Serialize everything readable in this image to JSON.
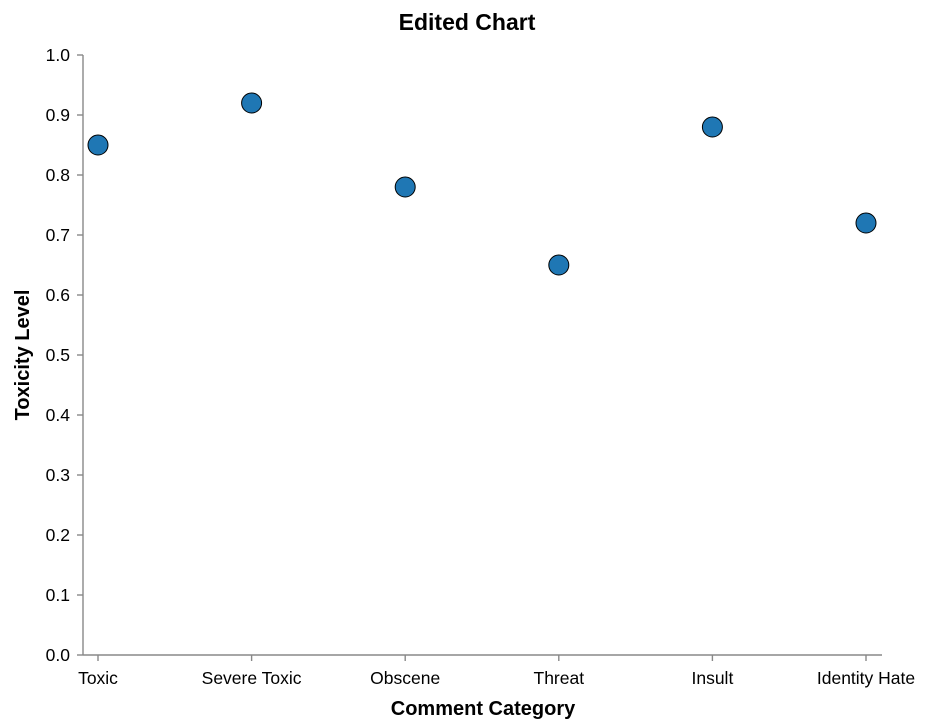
{
  "chart_data": {
    "type": "scatter",
    "title": "Edited Chart",
    "xlabel": "Comment Category",
    "ylabel": "Toxicity Level",
    "categories": [
      "Toxic",
      "Severe Toxic",
      "Obscene",
      "Threat",
      "Insult",
      "Identity Hate"
    ],
    "values": [
      0.85,
      0.92,
      0.78,
      0.65,
      0.88,
      0.72
    ],
    "ylim": [
      0,
      1.0
    ],
    "yticks": [
      "0.0",
      "0.1",
      "0.2",
      "0.3",
      "0.4",
      "0.5",
      "0.6",
      "0.7",
      "0.8",
      "0.9",
      "1.0"
    ],
    "grid": false,
    "point_color": "#1f77b4",
    "point_stroke": "#000000",
    "axis_color": "#888888"
  }
}
